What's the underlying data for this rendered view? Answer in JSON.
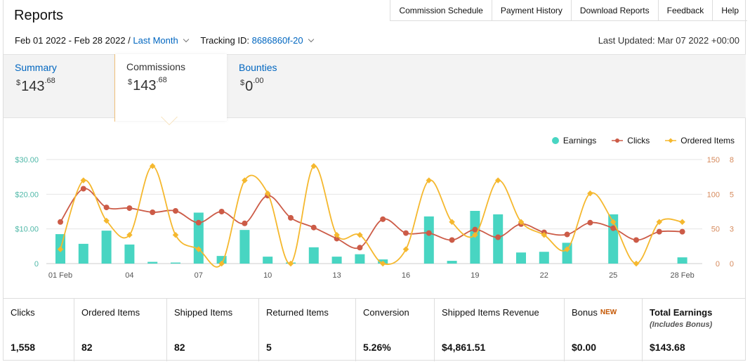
{
  "header": {
    "title": "Reports",
    "nav": [
      "Commission Schedule",
      "Payment History",
      "Download Reports",
      "Feedback",
      "Help"
    ]
  },
  "filters": {
    "date_range": "Feb 01 2022 - Feb 28 2022 /",
    "period": "Last Month",
    "tracking_label": "Tracking ID:",
    "tracking_id": "8686860f-20",
    "last_updated": "Last Updated: Mar 07 2022 +00:00"
  },
  "tabs": [
    {
      "label": "Summary",
      "currency": "$",
      "whole": "143",
      "cents": ".68",
      "active": false
    },
    {
      "label": "Commissions",
      "currency": "$",
      "whole": "143",
      "cents": ".68",
      "active": true
    },
    {
      "label": "Bounties",
      "currency": "$",
      "whole": "0",
      "cents": ".00",
      "active": false
    }
  ],
  "legend": {
    "earnings": "Earnings",
    "clicks": "Clicks",
    "ordered": "Ordered Items"
  },
  "colors": {
    "earnings": "#48d5c2",
    "clicks": "#cc5b47",
    "ordered": "#f5b82e",
    "link": "#0066c0",
    "new": "#c45500"
  },
  "chart_data": {
    "type": "bar",
    "x": [
      "01 Feb",
      "02",
      "03",
      "04",
      "05",
      "06",
      "07",
      "08",
      "09",
      "10",
      "11",
      "12",
      "13",
      "14",
      "15",
      "16",
      "17",
      "18",
      "19",
      "20",
      "21",
      "22",
      "23",
      "24",
      "25",
      "26",
      "27",
      "28 Feb"
    ],
    "xtick_labels": [
      "01 Feb",
      "04",
      "07",
      "10",
      "13",
      "16",
      "19",
      "22",
      "25",
      "28 Feb"
    ],
    "left_axis": {
      "ticks": [
        "$30.00",
        "$20.00",
        "$10.00",
        "0"
      ],
      "range": [
        0,
        30
      ]
    },
    "right_axis_1": {
      "ticks": [
        "150",
        "100",
        "50",
        "0"
      ],
      "range": [
        0,
        150
      ]
    },
    "right_axis_2": {
      "ticks": [
        "8",
        "5",
        "3",
        "0"
      ],
      "range": [
        0,
        8
      ]
    },
    "series": [
      {
        "name": "Earnings",
        "type": "bar",
        "axis": "left",
        "values": [
          8.5,
          5.7,
          9.5,
          5.5,
          0.5,
          0.3,
          14.7,
          2.2,
          9.7,
          2.0,
          0.3,
          4.7,
          2.0,
          2.7,
          1.2,
          0,
          13.6,
          0.8,
          15.2,
          14.2,
          3.2,
          3.4,
          6.0,
          0,
          14.2,
          0,
          0,
          1.8
        ]
      },
      {
        "name": "Clicks",
        "type": "line",
        "axis": "right_1",
        "values": [
          60,
          108,
          81,
          80,
          74,
          76,
          59,
          75,
          58,
          98,
          66,
          52,
          36,
          23,
          64,
          44,
          44,
          34,
          49,
          38,
          57,
          45,
          42,
          59,
          51,
          34,
          46,
          46
        ]
      },
      {
        "name": "Ordered Items",
        "type": "line",
        "axis": "right_2",
        "values": [
          1.1,
          6.4,
          3.3,
          2.2,
          7.5,
          2.2,
          1.1,
          0,
          6.4,
          5.4,
          0,
          7.5,
          2.2,
          2.2,
          0,
          1.1,
          6.4,
          3.2,
          2.2,
          6.4,
          3.2,
          2.2,
          1.1,
          5.4,
          3.2,
          0,
          3.2,
          3.2
        ]
      }
    ]
  },
  "stats": [
    {
      "label": "Clicks",
      "value": "1,558"
    },
    {
      "label": "Ordered Items",
      "value": "82"
    },
    {
      "label": "Shipped Items",
      "value": "82"
    },
    {
      "label": "Returned Items",
      "value": "5"
    },
    {
      "label": "Conversion",
      "value": "5.26%"
    },
    {
      "label": "Shipped Items Revenue",
      "value": "$4,861.51"
    },
    {
      "label": "Bonus",
      "badge": "NEW",
      "value": "$0.00"
    },
    {
      "label": "Total Earnings",
      "sublabel": "(Includes Bonus)",
      "value": "$143.68"
    }
  ]
}
